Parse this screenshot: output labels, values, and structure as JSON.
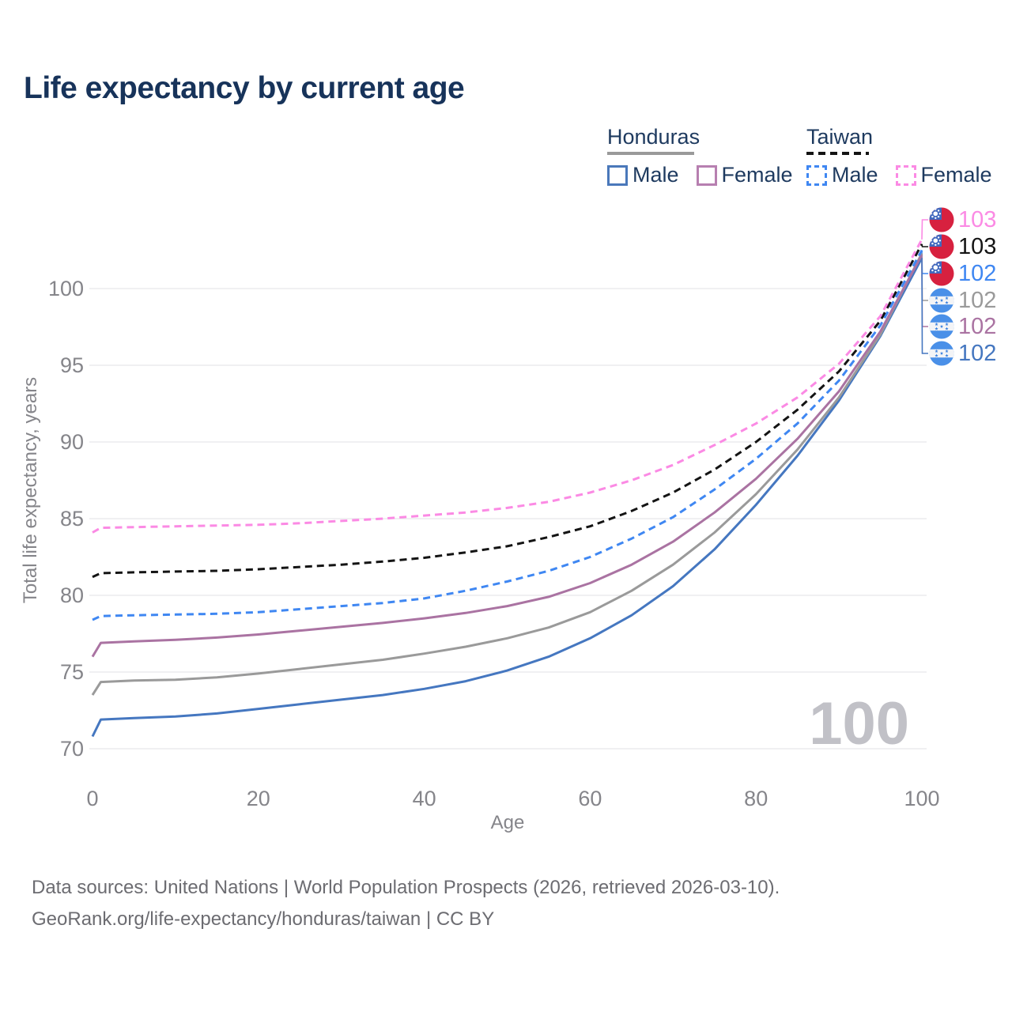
{
  "header": {
    "title": "Life expectancy by current age"
  },
  "legend": {
    "groups": [
      {
        "label": "Honduras",
        "style": "solid",
        "underline_color": "#9a9a9a",
        "items": [
          {
            "label": "Male",
            "color": "#4a78ba",
            "dash": false
          },
          {
            "label": "Female",
            "color": "#b77fb0",
            "dash": false
          }
        ]
      },
      {
        "label": "Taiwan",
        "style": "dashed",
        "underline_color": "#141414",
        "items": [
          {
            "label": "Male",
            "color": "#3f87f2",
            "dash": true
          },
          {
            "label": "Female",
            "color": "#fb8ae4",
            "dash": true
          }
        ]
      }
    ]
  },
  "chart_data": {
    "type": "line",
    "title": "Life expectancy by current age",
    "xlabel": "Age",
    "ylabel": "Total life expectancy, years",
    "xlim": [
      0,
      100
    ],
    "ylim": [
      70,
      105
    ],
    "x_ticks": [
      0,
      20,
      40,
      60,
      80,
      100
    ],
    "y_ticks": [
      70,
      75,
      80,
      85,
      90,
      95,
      100
    ],
    "grid": "horizontal",
    "legend_position": "top-right",
    "watermark": "100",
    "x": [
      0,
      1,
      5,
      10,
      15,
      20,
      25,
      30,
      35,
      40,
      45,
      50,
      55,
      60,
      65,
      70,
      75,
      80,
      85,
      90,
      95,
      100
    ],
    "series": [
      {
        "id": "taiwan-female",
        "name": "Taiwan Female",
        "color": "#fb8ae4",
        "dash": true,
        "flag": "taiwan",
        "end_label": "103",
        "values": [
          84.1,
          84.4,
          84.45,
          84.5,
          84.55,
          84.6,
          84.7,
          84.85,
          85.0,
          85.2,
          85.4,
          85.7,
          86.1,
          86.7,
          87.5,
          88.5,
          89.8,
          91.2,
          92.9,
          95.1,
          98.2,
          103.2
        ]
      },
      {
        "id": "taiwan-all",
        "name": "Taiwan",
        "color": "#141414",
        "dash": true,
        "flag": "taiwan",
        "end_label": "103",
        "values": [
          81.2,
          81.45,
          81.5,
          81.55,
          81.6,
          81.7,
          81.85,
          82.0,
          82.2,
          82.45,
          82.8,
          83.2,
          83.8,
          84.5,
          85.5,
          86.7,
          88.2,
          90.0,
          92.1,
          94.6,
          97.9,
          102.9
        ]
      },
      {
        "id": "taiwan-male",
        "name": "Taiwan Male",
        "color": "#3f87f2",
        "dash": true,
        "flag": "taiwan",
        "end_label": "102",
        "values": [
          78.4,
          78.65,
          78.7,
          78.75,
          78.8,
          78.9,
          79.1,
          79.3,
          79.5,
          79.8,
          80.3,
          80.9,
          81.6,
          82.5,
          83.7,
          85.1,
          86.9,
          88.9,
          91.2,
          94.0,
          97.6,
          102.5
        ]
      },
      {
        "id": "honduras-all",
        "name": "Honduras",
        "color": "#9a9a9a",
        "dash": false,
        "flag": "honduras",
        "end_label": "102",
        "values": [
          73.5,
          74.35,
          74.45,
          74.5,
          74.65,
          74.9,
          75.2,
          75.5,
          75.8,
          76.2,
          76.65,
          77.2,
          77.9,
          78.9,
          80.3,
          82.0,
          84.1,
          86.6,
          89.5,
          92.9,
          97.0,
          102.3
        ]
      },
      {
        "id": "honduras-female",
        "name": "Honduras Female",
        "color": "#aa73a2",
        "dash": false,
        "flag": "honduras",
        "end_label": "102",
        "values": [
          76.0,
          76.9,
          77.0,
          77.1,
          77.25,
          77.45,
          77.7,
          77.95,
          78.2,
          78.5,
          78.85,
          79.3,
          79.9,
          80.8,
          82.0,
          83.5,
          85.4,
          87.6,
          90.2,
          93.3,
          97.2,
          102.2
        ]
      },
      {
        "id": "honduras-male",
        "name": "Honduras Male",
        "color": "#4577c0",
        "dash": false,
        "flag": "honduras",
        "end_label": "102",
        "values": [
          70.8,
          71.9,
          72.0,
          72.1,
          72.3,
          72.6,
          72.9,
          73.2,
          73.5,
          73.9,
          74.4,
          75.1,
          76.0,
          77.2,
          78.7,
          80.6,
          83.0,
          85.9,
          89.1,
          92.7,
          96.9,
          102.0
        ]
      }
    ]
  },
  "footer": {
    "line1": "Data sources: United Nations | World Population Prospects (2026, retrieved 2026-03-10).",
    "line2": "GeoRank.org/life-expectancy/honduras/taiwan | CC BY"
  }
}
